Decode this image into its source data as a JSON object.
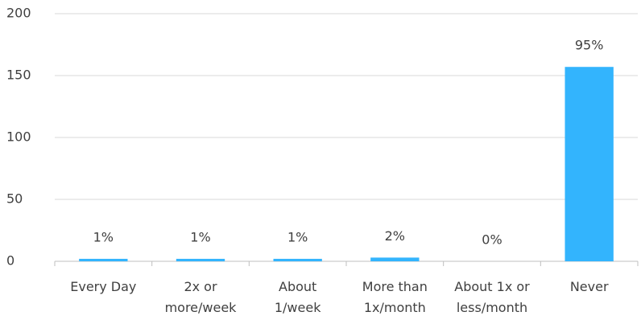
{
  "chart_data": {
    "type": "bar",
    "categories": [
      [
        "Every Day"
      ],
      [
        "2x or",
        "more/week"
      ],
      [
        "About",
        "1/week"
      ],
      [
        "More than",
        "1x/month"
      ],
      [
        "About 1x or",
        "less/month"
      ],
      [
        "Never"
      ]
    ],
    "values": [
      2,
      2,
      2,
      3,
      0,
      157
    ],
    "value_labels": [
      "1%",
      "1%",
      "1%",
      "2%",
      "0%",
      "95%"
    ],
    "color": "#33b4fd",
    "ylim": [
      0,
      200
    ],
    "yticks": [
      0,
      50,
      100,
      150,
      200
    ],
    "grid": true
  }
}
